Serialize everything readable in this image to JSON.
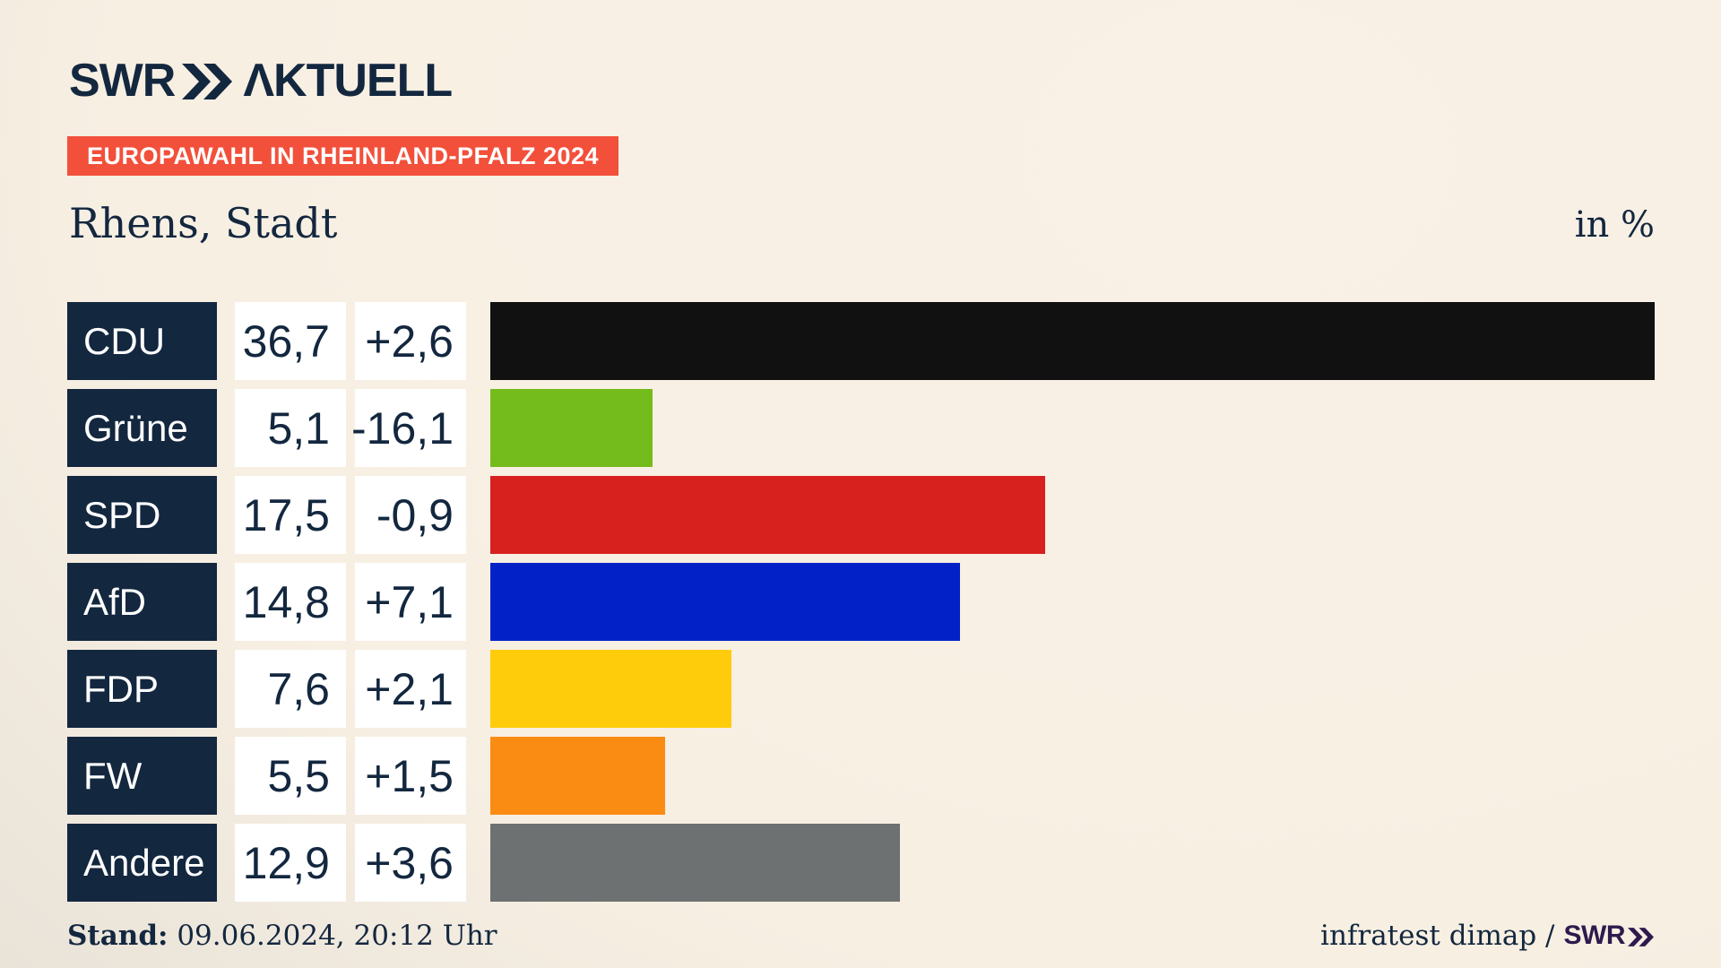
{
  "header": {
    "logo_swr": "SWR",
    "logo_aktuell": "ΛKTUELL",
    "badge": "EUROPAWAHL IN RHEINLAND-PFALZ 2024"
  },
  "title": {
    "region": "Rhens, Stadt",
    "unit_label": "in %"
  },
  "chart_data": {
    "type": "bar",
    "orientation": "horizontal",
    "title": "Europawahl in Rheinland-Pfalz 2024 – Rhens, Stadt",
    "unit": "in %",
    "xlim": [
      0,
      36.7
    ],
    "grid": false,
    "legend": "none",
    "categories": [
      "CDU",
      "Grüne",
      "SPD",
      "AfD",
      "FDP",
      "FW",
      "Andere"
    ],
    "values": [
      36.7,
      5.1,
      17.5,
      14.8,
      7.6,
      5.5,
      12.9
    ],
    "deltas": [
      2.6,
      -16.1,
      -0.9,
      7.1,
      2.1,
      1.5,
      3.6
    ],
    "rows": [
      {
        "party": "CDU",
        "value": 36.7,
        "value_label": "36,7",
        "delta_label": "+2,6",
        "color": "#111111"
      },
      {
        "party": "Grüne",
        "value": 5.1,
        "value_label": "5,1",
        "delta_label": "-16,1",
        "color": "#74bb1c"
      },
      {
        "party": "SPD",
        "value": 17.5,
        "value_label": "17,5",
        "delta_label": "-0,9",
        "color": "#d7211e"
      },
      {
        "party": "AfD",
        "value": 14.8,
        "value_label": "14,8",
        "delta_label": "+7,1",
        "color": "#0222c8"
      },
      {
        "party": "FDP",
        "value": 7.6,
        "value_label": "7,6",
        "delta_label": "+2,1",
        "color": "#ffcc0b"
      },
      {
        "party": "FW",
        "value": 5.5,
        "value_label": "5,5",
        "delta_label": "+1,5",
        "color": "#fa8c14"
      },
      {
        "party": "Andere",
        "value": 12.9,
        "value_label": "12,9",
        "delta_label": "+3,6",
        "color": "#6e7172"
      }
    ]
  },
  "footer": {
    "stand_label": "Stand:",
    "stand_value": "09.06.2024, 20:12 Uhr",
    "credit_source": "infratest dimap /",
    "credit_brand": "SWR"
  },
  "colors": {
    "navy": "#13273f",
    "badge_red": "#f2503b",
    "background_cream": "#f8f0e4",
    "swr_purple": "#2e1a4d"
  }
}
